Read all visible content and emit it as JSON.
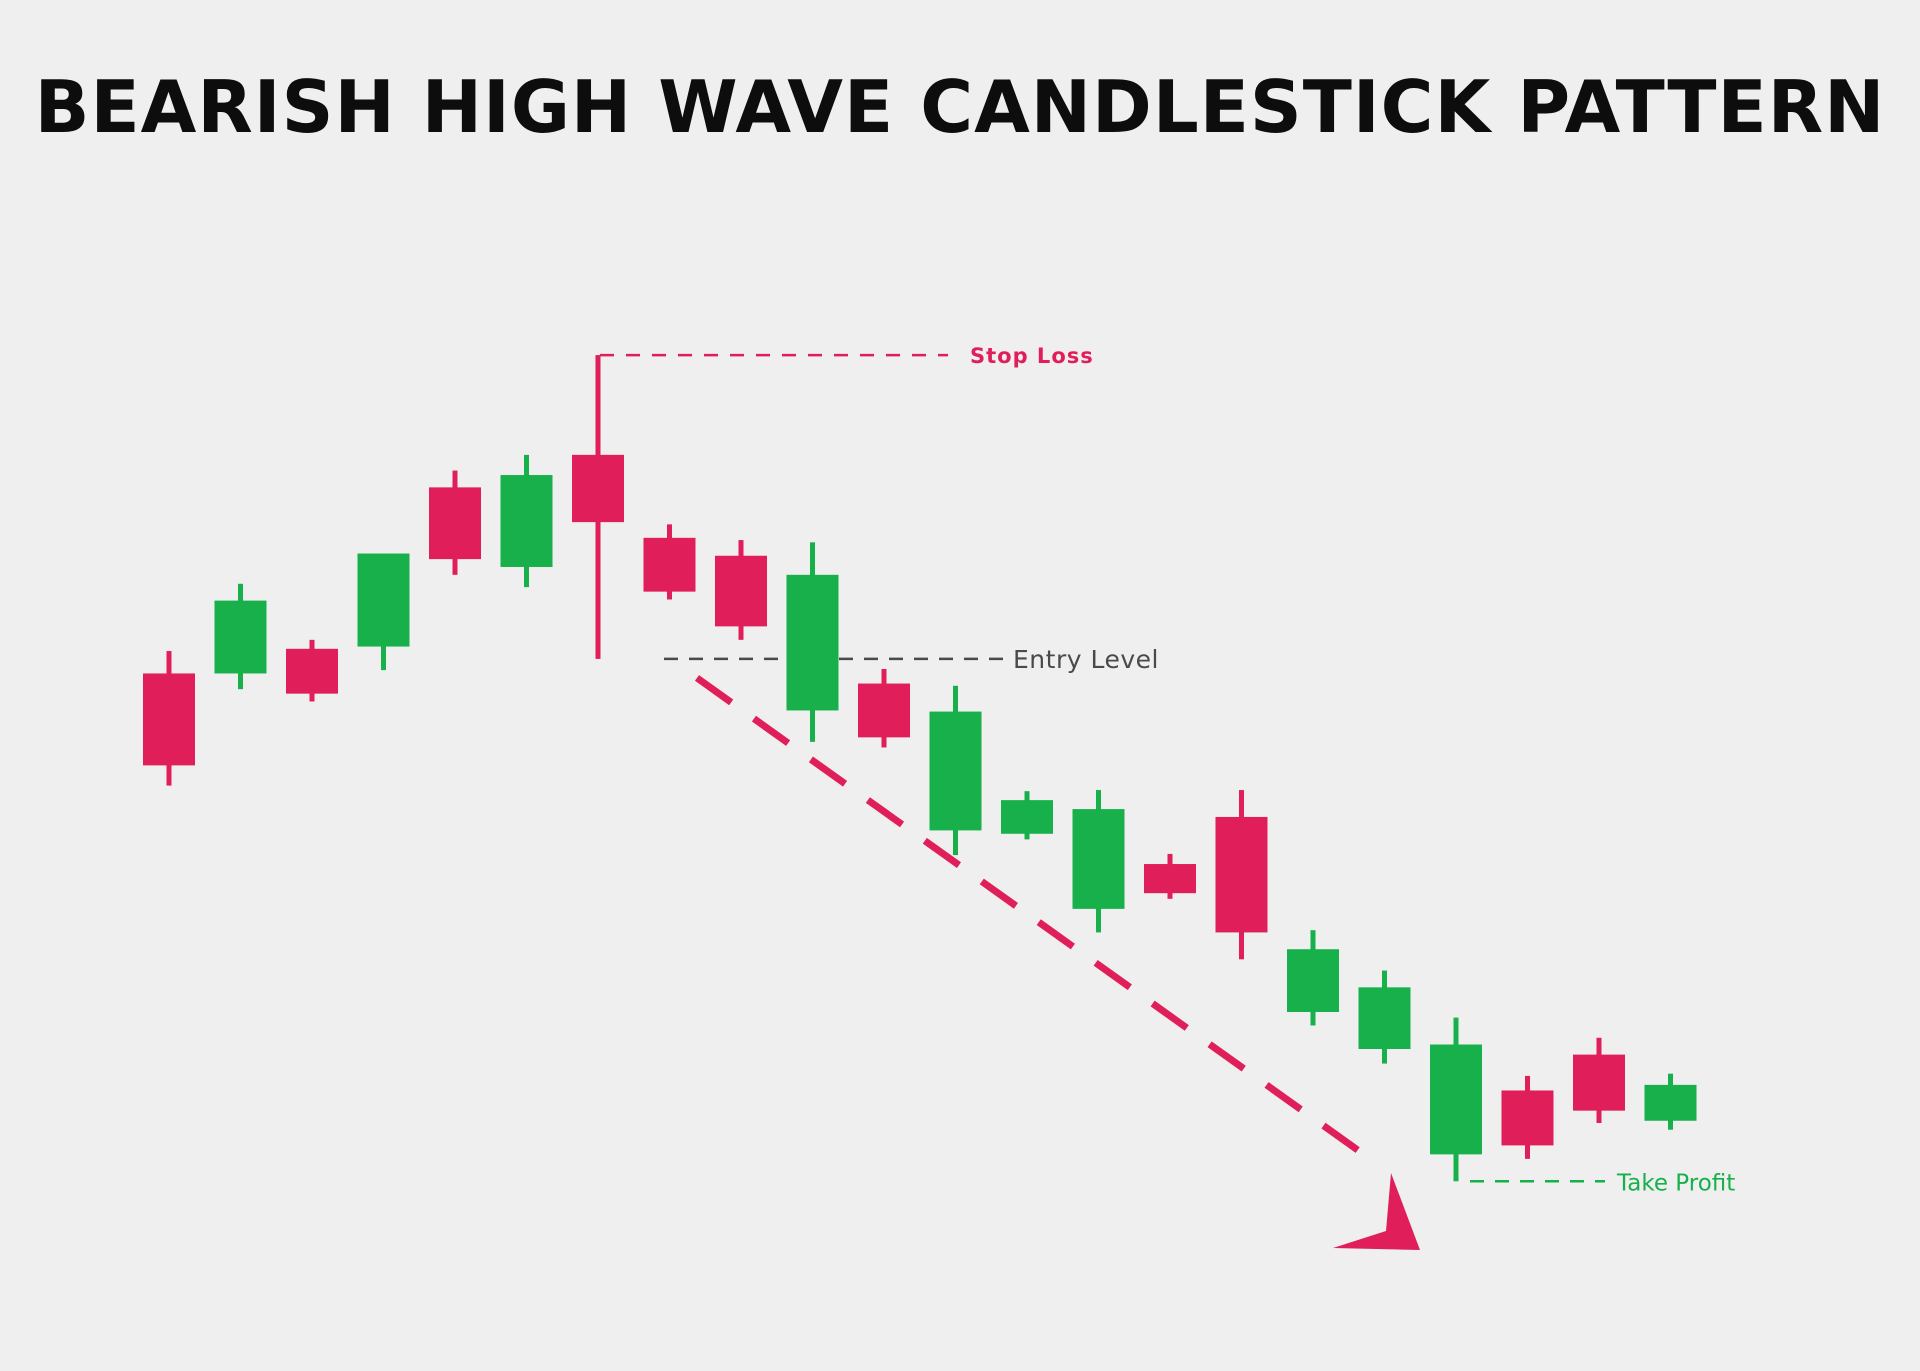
{
  "title": "BEARISH HIGH WAVE CANDLESTICK PATTERN",
  "colors": {
    "background": "#efefef",
    "bearish": "#e01e5a",
    "bullish": "#17b04b",
    "entry": "#4a4a4a",
    "title": "#0d0d0d"
  },
  "annotations": {
    "stop_loss": "Stop Loss",
    "entry_level": "Entry Level",
    "take_profit": "Take Profit"
  },
  "chart_data": {
    "type": "candlestick",
    "title": "BEARISH HIGH WAVE CANDLESTICK PATTERN",
    "xlabel": "",
    "ylabel": "",
    "axes_visible": false,
    "grid": false,
    "ylim": [
      0,
      100
    ],
    "candles": [
      {
        "high": 63.6,
        "open": 61.6,
        "close": 53.4,
        "low": 51.6,
        "direction": "bearish"
      },
      {
        "high": 69.6,
        "open": 61.6,
        "close": 68.1,
        "low": 60.2,
        "direction": "bullish"
      },
      {
        "high": 64.6,
        "open": 63.8,
        "close": 59.8,
        "low": 59.1,
        "direction": "bearish"
      },
      {
        "high": 72.3,
        "open": 64.0,
        "close": 72.3,
        "low": 61.9,
        "direction": "bullish"
      },
      {
        "high": 79.7,
        "open": 78.2,
        "close": 71.8,
        "low": 70.4,
        "direction": "bearish"
      },
      {
        "high": 81.1,
        "open": 71.1,
        "close": 79.3,
        "low": 69.3,
        "direction": "bullish"
      },
      {
        "high": 90.0,
        "open": 81.1,
        "close": 75.1,
        "low": 62.9,
        "direction": "bearish",
        "note": "high wave candle"
      },
      {
        "high": 74.9,
        "open": 73.7,
        "close": 68.9,
        "low": 68.2,
        "direction": "bearish"
      },
      {
        "high": 73.5,
        "open": 72.1,
        "close": 65.8,
        "low": 64.6,
        "direction": "bearish"
      },
      {
        "high": 73.3,
        "open": 58.3,
        "close": 70.4,
        "low": 55.5,
        "direction": "bullish"
      },
      {
        "high": 62.0,
        "open": 60.7,
        "close": 55.9,
        "low": 55.0,
        "direction": "bearish"
      },
      {
        "high": 60.5,
        "open": 47.6,
        "close": 58.2,
        "low": 45.4,
        "direction": "bullish"
      },
      {
        "high": 51.1,
        "open": 47.3,
        "close": 50.3,
        "low": 46.8,
        "direction": "bullish"
      },
      {
        "high": 51.2,
        "open": 40.6,
        "close": 49.5,
        "low": 38.5,
        "direction": "bullish"
      },
      {
        "high": 45.5,
        "open": 44.6,
        "close": 42.0,
        "low": 41.5,
        "direction": "bearish"
      },
      {
        "high": 51.2,
        "open": 48.8,
        "close": 38.5,
        "low": 36.1,
        "direction": "bearish"
      },
      {
        "high": 38.7,
        "open": 31.4,
        "close": 37.0,
        "low": 30.2,
        "direction": "bullish"
      },
      {
        "high": 35.1,
        "open": 28.1,
        "close": 33.6,
        "low": 26.8,
        "direction": "bullish"
      },
      {
        "high": 30.9,
        "open": 18.7,
        "close": 28.5,
        "low": 16.3,
        "direction": "bullish"
      },
      {
        "high": 25.7,
        "open": 24.4,
        "close": 19.5,
        "low": 18.3,
        "direction": "bearish"
      },
      {
        "high": 29.1,
        "open": 27.6,
        "close": 22.6,
        "low": 21.5,
        "direction": "bearish"
      },
      {
        "high": 25.9,
        "open": 21.7,
        "close": 24.9,
        "low": 20.9,
        "direction": "bullish"
      }
    ],
    "levels": [
      {
        "label": "Stop Loss",
        "value": 90.0
      },
      {
        "label": "Entry Level",
        "value": 62.9
      },
      {
        "label": "Take Profit",
        "value": 16.3
      }
    ],
    "trend_arrow": {
      "from_candle": 6,
      "to_candle": 17,
      "from_value": 61.2,
      "to_value": 18.3,
      "direction": "down"
    }
  }
}
